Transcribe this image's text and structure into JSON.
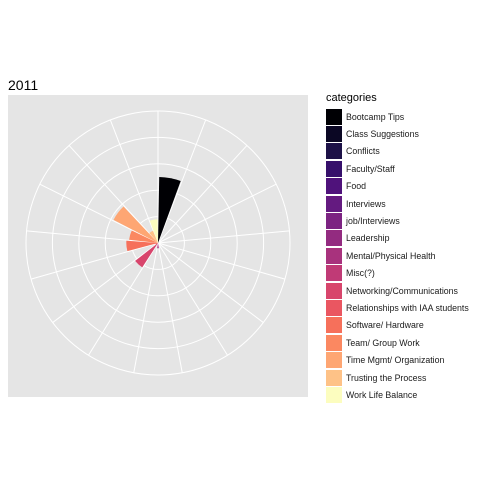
{
  "chart_data": {
    "type": "bar",
    "coord": "polar",
    "title": "2011",
    "legend_title": "categories",
    "legend_position": "right",
    "grid": true,
    "categories": [
      "Bootcamp Tips",
      "Class Suggestions",
      "Conflicts",
      "Faculty/Staff",
      "Food",
      "Interviews",
      "job/Interviews",
      "Leadership",
      "Mental/Physical Health",
      "Misc(?)",
      "Networking/Communications",
      "Relationships with IAA students",
      "Software/ Hardware",
      "Team/ Group Work",
      "Time Mgmt/ Organization",
      "Trusting the Process",
      "Work Life Balance"
    ],
    "colors": [
      "#000004",
      "#0b0724",
      "#1d1147",
      "#36106b",
      "#4f127b",
      "#641a80",
      "#7c2382",
      "#932b80",
      "#a8327d",
      "#c03a76",
      "#d8456c",
      "#ea5661",
      "#f6705b",
      "#fb8861",
      "#fea673",
      "#fec287",
      "#fcfdbf"
    ],
    "values": [
      2.5,
      0,
      0,
      0,
      0,
      0,
      0,
      0,
      0.2,
      0,
      1.1,
      0.1,
      1.2,
      1.1,
      1.9,
      0.5,
      0.9
    ],
    "rmax": 5
  }
}
